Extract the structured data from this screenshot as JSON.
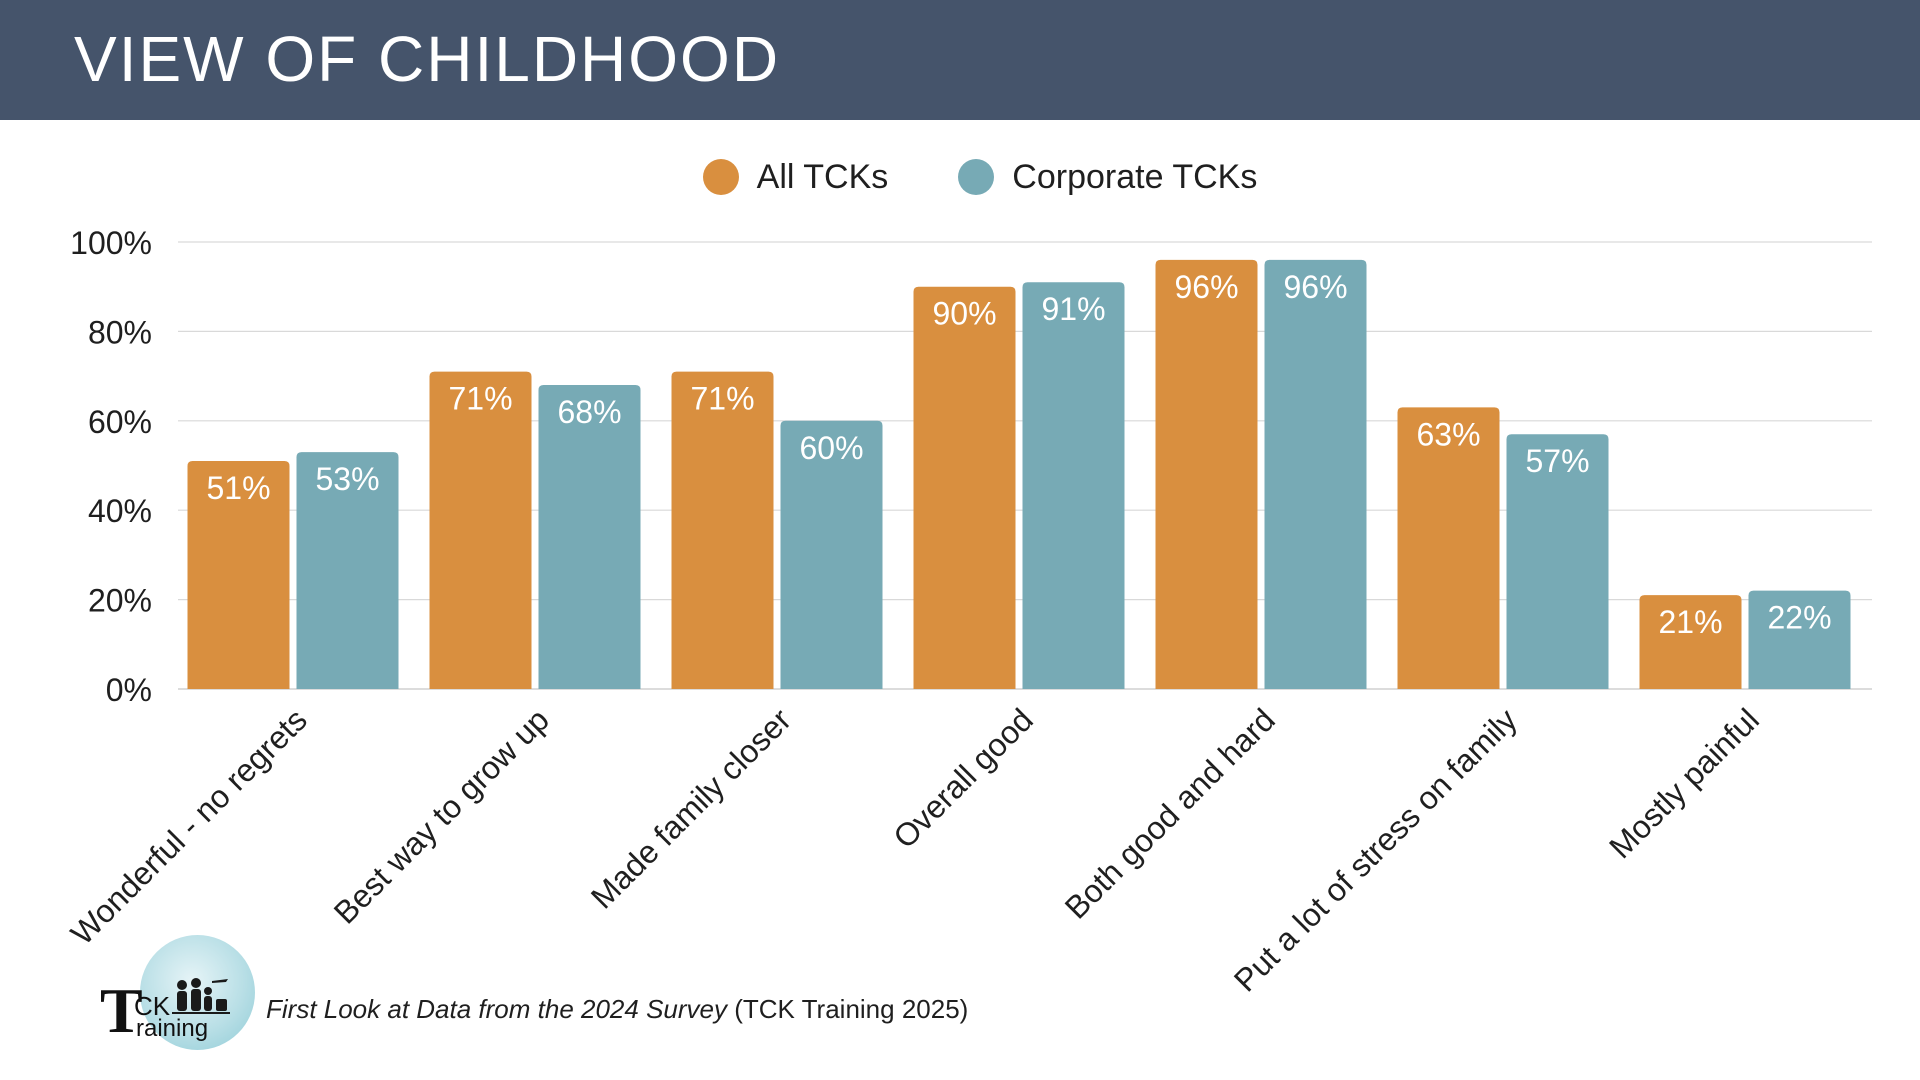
{
  "header": {
    "title": "VIEW OF CHILDHOOD"
  },
  "colors": {
    "header_bg": "#45546b",
    "all_tcks": "#d98f3f",
    "corporate_tcks": "#77aab5",
    "gridline": "#d9d9d9"
  },
  "legend": [
    {
      "label": "All TCKs",
      "color": "#d98f3f"
    },
    {
      "label": "Corporate TCKs",
      "color": "#77aab5"
    }
  ],
  "chart_data": {
    "type": "bar",
    "title": "VIEW OF CHILDHOOD",
    "categories": [
      "Wonderful - no regrets",
      "Best way to grow up",
      "Made family closer",
      "Overall good",
      "Both good and hard",
      "Put a lot of stress on family",
      "Mostly painful"
    ],
    "series": [
      {
        "name": "All TCKs",
        "color": "#d98f3f",
        "values": [
          51,
          71,
          71,
          90,
          96,
          63,
          21
        ],
        "labels": [
          "51%",
          "71%",
          "71%",
          "90%",
          "96%",
          "63%",
          "21%"
        ]
      },
      {
        "name": "Corporate TCKs",
        "color": "#77aab5",
        "values": [
          53,
          68,
          60,
          91,
          96,
          57,
          22
        ],
        "labels": [
          "53%",
          "68%",
          "60%",
          "91%",
          "96%",
          "57%",
          "22%"
        ]
      }
    ],
    "ylim": [
      0,
      100
    ],
    "yticks": [
      "0%",
      "20%",
      "40%",
      "60%",
      "80%",
      "100%"
    ],
    "grid": true,
    "legend_position": "top"
  },
  "footer": {
    "logo_text": {
      "t": "T",
      "ck": "CK",
      "raining": "raining"
    },
    "source_italic": "First Look at Data from the 2024 Survey",
    "source_plain": " (TCK Training 2025)"
  }
}
